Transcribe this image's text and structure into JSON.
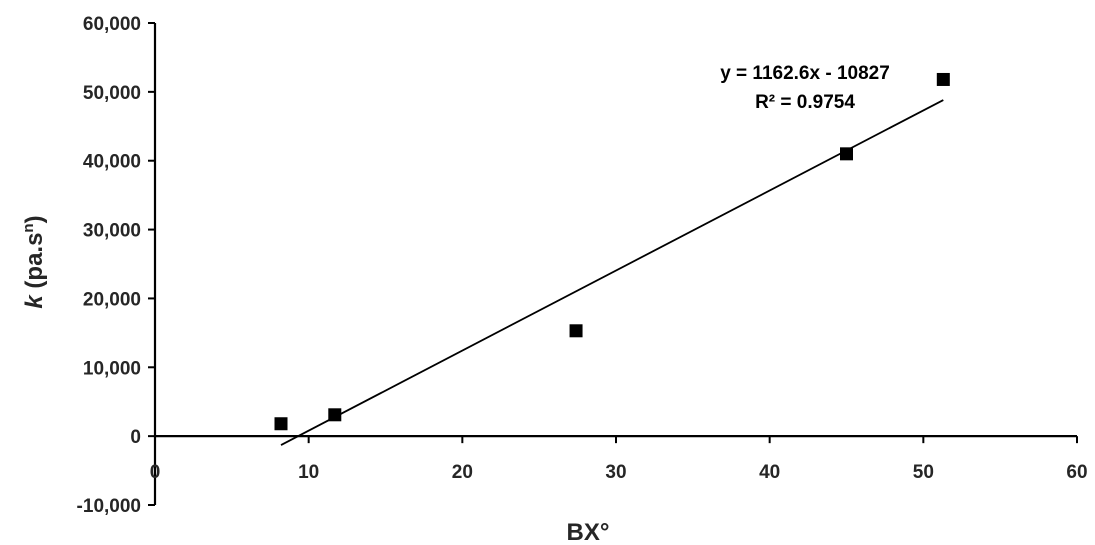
{
  "chart_data": {
    "type": "scatter",
    "xlabel": "BX°",
    "ylabel_main": "k",
    "ylabel_rest": " (pa.s",
    "ylabel_sup": "n",
    "ylabel_close": ")",
    "xlim": [
      0,
      60
    ],
    "ylim": [
      -10000,
      60000
    ],
    "x_ticks": [
      0,
      10,
      20,
      30,
      40,
      50,
      60
    ],
    "x_tick_labels": [
      "0",
      "10",
      "20",
      "30",
      "40",
      "50",
      "60"
    ],
    "y_ticks": [
      -10000,
      0,
      10000,
      20000,
      30000,
      40000,
      50000,
      60000
    ],
    "y_tick_labels": [
      "-10,000",
      "0",
      "10,000",
      "20,000",
      "30,000",
      "40,000",
      "50,000",
      "60,000"
    ],
    "grid": false,
    "series": [
      {
        "marker": "square",
        "color": "#000000",
        "points": [
          {
            "x": 8.2,
            "y": 1800
          },
          {
            "x": 11.7,
            "y": 3100
          },
          {
            "x": 27.4,
            "y": 15300
          },
          {
            "x": 45.0,
            "y": 41000
          },
          {
            "x": 51.3,
            "y": 51800
          }
        ]
      }
    ],
    "trendline": {
      "type": "linear",
      "slope": 1162.6,
      "intercept": -10827,
      "x_range": [
        8.2,
        51.3
      ],
      "equation_label": "y = 1162.6x - 10827",
      "r2_label": "R² = 0.9754"
    }
  }
}
